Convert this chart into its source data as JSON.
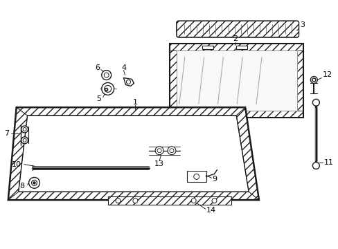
{
  "bg_color": "#ffffff",
  "fg_color": "#000000",
  "fig_width": 4.89,
  "fig_height": 3.6,
  "dpi": 100,
  "font_size": 8,
  "line_color": "#1a1a1a"
}
